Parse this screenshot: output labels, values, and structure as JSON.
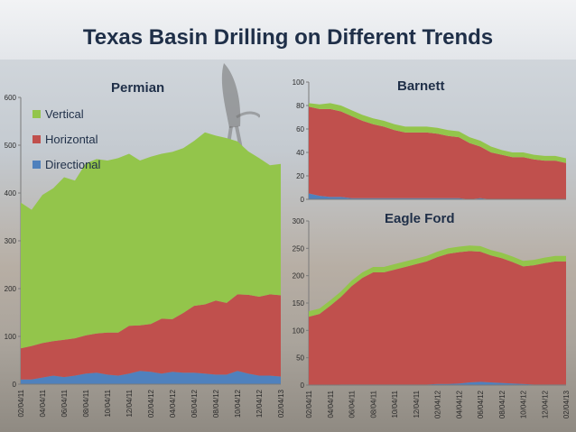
{
  "title": "Texas Basin Drilling on Different Trends",
  "legend": [
    {
      "label": "Vertical",
      "color": "#93c54b"
    },
    {
      "label": "Horizontal",
      "color": "#c0504d"
    },
    {
      "label": "Directional",
      "color": "#4f81bd"
    }
  ],
  "chart_data": [
    {
      "type": "area",
      "stacked": true,
      "title": "Permian",
      "xlabel": "",
      "ylabel": "",
      "ylim": [
        0,
        600
      ],
      "yticks": [
        0,
        100,
        200,
        300,
        400,
        500,
        600
      ],
      "x_labels": [
        "02/04/11",
        "04/04/11",
        "06/04/11",
        "08/04/11",
        "10/04/11",
        "12/04/11",
        "02/04/12",
        "04/04/12",
        "06/04/12",
        "08/04/12",
        "10/04/12",
        "12/04/12",
        "02/04/13"
      ],
      "series": [
        {
          "name": "Directional",
          "color": "#4f81bd",
          "values": [
            10,
            10,
            14,
            18,
            15,
            18,
            22,
            24,
            20,
            18,
            22,
            28,
            26,
            22,
            26,
            24,
            24,
            22,
            20,
            20,
            28,
            22,
            18,
            18,
            16
          ]
        },
        {
          "name": "Horizontal",
          "color": "#c0504d",
          "values": [
            65,
            70,
            72,
            72,
            78,
            78,
            80,
            82,
            88,
            90,
            100,
            95,
            100,
            115,
            110,
            125,
            140,
            145,
            155,
            150,
            160,
            165,
            165,
            170,
            170
          ]
        },
        {
          "name": "Vertical",
          "color": "#93c54b",
          "values": [
            305,
            285,
            310,
            320,
            340,
            330,
            360,
            365,
            360,
            365,
            360,
            345,
            350,
            345,
            350,
            345,
            345,
            360,
            345,
            345,
            320,
            300,
            290,
            270,
            275
          ]
        }
      ]
    },
    {
      "type": "area",
      "stacked": true,
      "title": "Barnett",
      "xlabel": "",
      "ylabel": "",
      "ylim": [
        0,
        100
      ],
      "yticks": [
        0,
        20,
        40,
        60,
        80,
        100
      ],
      "x_labels": [],
      "series": [
        {
          "name": "Directional",
          "color": "#4f81bd",
          "values": [
            5,
            3,
            2,
            2,
            1,
            1,
            1,
            1,
            1,
            1,
            1,
            1,
            1,
            1,
            1,
            0,
            1,
            0,
            0,
            0,
            0,
            0,
            0,
            0,
            0
          ]
        },
        {
          "name": "Horizontal",
          "color": "#c0504d",
          "values": [
            74,
            74,
            75,
            73,
            70,
            66,
            63,
            61,
            58,
            56,
            56,
            56,
            55,
            53,
            52,
            48,
            44,
            40,
            38,
            36,
            36,
            34,
            33,
            33,
            31
          ]
        },
        {
          "name": "Vertical",
          "color": "#93c54b",
          "values": [
            3,
            4,
            5,
            5,
            5,
            5,
            5,
            5,
            5,
            5,
            5,
            5,
            5,
            5,
            5,
            5,
            5,
            5,
            4,
            4,
            4,
            4,
            4,
            4,
            4
          ]
        }
      ]
    },
    {
      "type": "area",
      "stacked": true,
      "title": "Eagle Ford",
      "xlabel": "",
      "ylabel": "",
      "ylim": [
        0,
        300
      ],
      "yticks": [
        0,
        50,
        100,
        150,
        200,
        250,
        300
      ],
      "x_labels": [
        "02/04/11",
        "04/04/11",
        "06/04/11",
        "08/04/11",
        "10/04/11",
        "12/04/11",
        "02/04/12",
        "04/04/12",
        "06/04/12",
        "08/04/12",
        "10/04/12",
        "12/04/12",
        "02/04/13"
      ],
      "series": [
        {
          "name": "Directional",
          "color": "#4f81bd",
          "values": [
            0,
            0,
            0,
            1,
            1,
            1,
            1,
            1,
            1,
            1,
            1,
            1,
            2,
            2,
            3,
            5,
            6,
            5,
            4,
            3,
            2,
            1,
            1,
            1,
            1
          ]
        },
        {
          "name": "Horizontal",
          "color": "#c0504d",
          "values": [
            125,
            130,
            145,
            160,
            180,
            195,
            205,
            205,
            210,
            215,
            220,
            225,
            232,
            238,
            240,
            240,
            238,
            232,
            228,
            222,
            215,
            218,
            222,
            225,
            225
          ]
        },
        {
          "name": "Vertical",
          "color": "#93c54b",
          "values": [
            10,
            10,
            10,
            10,
            10,
            10,
            10,
            10,
            10,
            10,
            10,
            10,
            10,
            10,
            10,
            10,
            10,
            10,
            10,
            10,
            10,
            10,
            10,
            10,
            10
          ]
        }
      ]
    }
  ]
}
